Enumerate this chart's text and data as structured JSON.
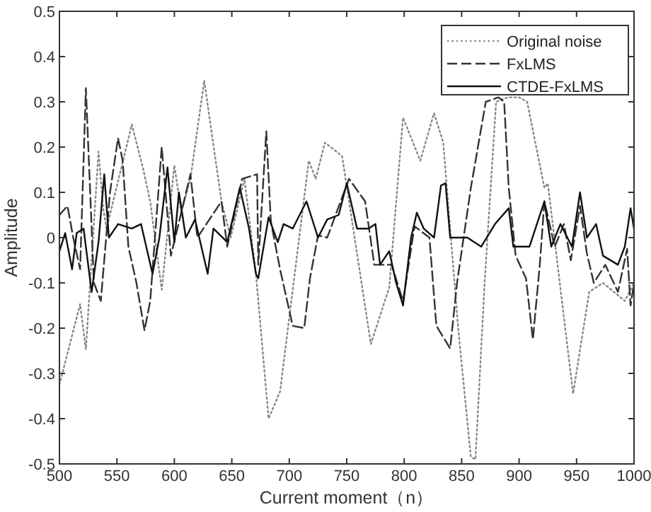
{
  "chart_data": {
    "type": "line",
    "xlabel": "Current moment（n）",
    "ylabel": "Amplitude",
    "xlim": [
      500,
      1000
    ],
    "ylim": [
      -0.5,
      0.5
    ],
    "xticks": [
      500,
      550,
      600,
      650,
      700,
      750,
      800,
      850,
      900,
      950,
      1000
    ],
    "yticks": [
      -0.5,
      -0.4,
      -0.3,
      -0.2,
      -0.1,
      0,
      0.1,
      0.2,
      0.3,
      0.4,
      0.5
    ],
    "legend": "top right",
    "series": [
      {
        "name": "Original noise",
        "color": "#888888",
        "line_style": "dotted",
        "x": [
          500,
          518,
          523,
          534,
          538,
          541,
          563,
          573,
          579,
          589,
          600,
          606,
          614,
          626,
          641,
          649,
          661,
          671,
          682,
          692,
          717,
          723,
          731,
          746,
          771,
          787,
          799,
          814,
          826,
          834,
          847,
          858,
          862,
          870,
          880,
          890,
          900,
          907,
          922,
          925,
          947,
          961,
          973,
          992,
          1000
        ],
        "values": [
          -0.325,
          -0.147,
          -0.247,
          0.19,
          0.066,
          0.02,
          0.25,
          0.15,
          0.08,
          -0.115,
          0.16,
          0.056,
          0.13,
          0.347,
          0.08,
          0,
          0.13,
          -0.08,
          -0.4,
          -0.34,
          0.17,
          0.13,
          0.21,
          0.18,
          -0.235,
          -0.11,
          0.265,
          0.17,
          0.275,
          0.21,
          -0.2,
          -0.485,
          -0.49,
          -0.1,
          0.3,
          0.31,
          0.31,
          0.3,
          0.11,
          0.12,
          -0.345,
          -0.12,
          -0.1,
          -0.14,
          -0.1
        ]
      },
      {
        "name": "FxLMS",
        "color": "#333333",
        "line_style": "dashed",
        "x": [
          500,
          507,
          512,
          518,
          523,
          530,
          536,
          544,
          551,
          555,
          560,
          567,
          574,
          579,
          589,
          597,
          614,
          620,
          641,
          646,
          659,
          672,
          673,
          680,
          684,
          692,
          703,
          713,
          718,
          725,
          733,
          752,
          766,
          774,
          789,
          799,
          809,
          822,
          828,
          840,
          846,
          858,
          871,
          882,
          887,
          891,
          897,
          906,
          912,
          918,
          922,
          931,
          939,
          945,
          953,
          959,
          965,
          975,
          986,
          994,
          997,
          1000
        ],
        "values": [
          0.05,
          0.07,
          0.0,
          -0.07,
          0.33,
          -0.1,
          -0.14,
          0.1,
          0.22,
          0.17,
          -0.02,
          -0.1,
          -0.205,
          -0.14,
          0.2,
          -0.04,
          0.14,
          0.0,
          0.08,
          -0.02,
          0.13,
          0.14,
          -0.06,
          0.235,
          0.035,
          -0.07,
          -0.195,
          -0.2,
          -0.09,
          0.005,
          0.0,
          0.13,
          0.08,
          -0.06,
          -0.06,
          -0.14,
          0.025,
          0.0,
          -0.195,
          -0.245,
          -0.1,
          0.11,
          0.3,
          0.31,
          0.3,
          0.11,
          -0.04,
          -0.09,
          -0.225,
          -0.06,
          0.08,
          -0.02,
          0.03,
          -0.05,
          0.07,
          -0.035,
          -0.1,
          -0.06,
          -0.12,
          -0.025,
          -0.15,
          -0.1
        ]
      },
      {
        "name": "CTDE-FxLMS",
        "color": "#111111",
        "line_style": "solid",
        "x": [
          500,
          505,
          511,
          515,
          521,
          528,
          534,
          539,
          543,
          551,
          563,
          571,
          581,
          587,
          594,
          600,
          604,
          610,
          618,
          629,
          634,
          646,
          657,
          665,
          671,
          673,
          682,
          690,
          695,
          703,
          715,
          725,
          733,
          743,
          750,
          759,
          769,
          775,
          779,
          787,
          793,
          799,
          806,
          811,
          817,
          826,
          832,
          836,
          840,
          855,
          867,
          879,
          891,
          895,
          909,
          922,
          928,
          936,
          946,
          953,
          959,
          967,
          973,
          986,
          992,
          997,
          1000
        ],
        "values": [
          -0.03,
          0.01,
          -0.07,
          0.01,
          0.02,
          -0.12,
          -0.01,
          0.14,
          0.0,
          0.03,
          0.02,
          0.03,
          -0.08,
          0.0,
          0.155,
          -0.01,
          0.1,
          0.0,
          0.04,
          -0.08,
          0.02,
          -0.01,
          0.11,
          0.02,
          -0.08,
          -0.09,
          0.045,
          -0.01,
          0.03,
          0.02,
          0.08,
          0.0,
          0.04,
          0.05,
          0.12,
          0.02,
          0.02,
          0.03,
          -0.06,
          -0.03,
          -0.1,
          -0.15,
          0.0,
          0.055,
          0.02,
          0.0,
          0.115,
          0.12,
          0.0,
          0.0,
          -0.02,
          0.03,
          0.065,
          -0.02,
          -0.02,
          0.08,
          -0.02,
          0.03,
          -0.02,
          0.1,
          0.0,
          0.03,
          -0.04,
          -0.06,
          -0.02,
          0.065,
          0.02
        ]
      }
    ]
  }
}
